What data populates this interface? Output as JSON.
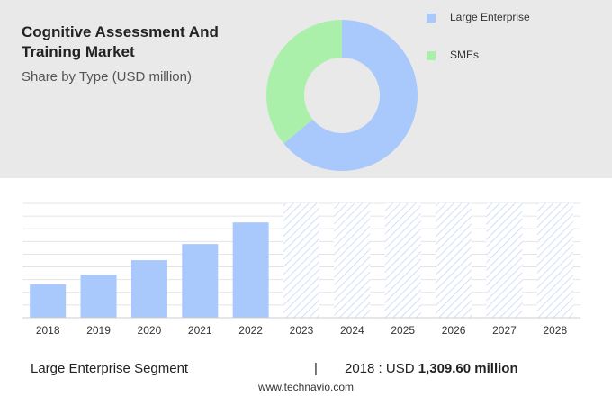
{
  "chart_data": [
    {
      "type": "donut",
      "title": "Cognitive Assessment And Training Market",
      "subtitle": "Share by Type (USD million)",
      "categories": [
        "Large Enterprise",
        "SMEs"
      ],
      "values": [
        64,
        36
      ],
      "colors": [
        "#a9c8fb",
        "#aaf0aa"
      ]
    },
    {
      "type": "bar",
      "categories": [
        "2018",
        "2019",
        "2020",
        "2021",
        "2022",
        "2023",
        "2024",
        "2025",
        "2026",
        "2027",
        "2028"
      ],
      "values": [
        1309.6,
        1700,
        2265,
        2900,
        3750,
        null,
        null,
        null,
        null,
        null,
        null
      ],
      "value_labels": [
        "1,309.60 million",
        null,
        null,
        null,
        null,
        null,
        null,
        null,
        null,
        null,
        null
      ],
      "color": "#a9c8fb",
      "ylim": [
        0,
        4500
      ],
      "grid": true
    }
  ],
  "footer": {
    "segment": "Large Enterprise Segment",
    "separator": "|",
    "year_label": "2018 : USD",
    "source": "www.technavio.com"
  }
}
